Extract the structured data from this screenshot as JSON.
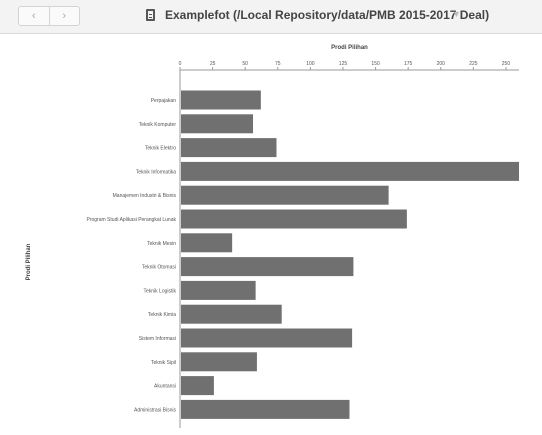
{
  "window": {
    "title": "Examplefot (/Local Repository/data/PMB 2015-2017 Deal)"
  },
  "toolbar": {
    "back_icon": "chevron-left-icon",
    "forward_icon": "chevron-right-icon",
    "document_icon": "document-icon",
    "title_dropdown_icon": "chevron-down-icon"
  },
  "colors": {
    "bar": "#707070",
    "toolbar_bg": "#f3f3f3",
    "axis": "#9a9a9a"
  },
  "chart_data": {
    "type": "bar",
    "orientation": "horizontal",
    "xlabel": "Prodi Pilihan",
    "ylabel": "Prodi Pilihan",
    "x_axis_position": "top",
    "xlim": [
      0,
      260
    ],
    "xticks": [
      0,
      25,
      50,
      75,
      100,
      125,
      150,
      175,
      200,
      225,
      250
    ],
    "grid": false,
    "categories": [
      "Perpajakan",
      "Teknik Komputer",
      "Teknik Elektro",
      "Teknik Informatika",
      "Manajemen Industri & Bisnis",
      "Program Studi Aplikasi Perangkat Lunak",
      "Teknik Mesin",
      "Teknik Otomasi",
      "Teknik Logistik",
      "Teknik Kimia",
      "Sistem Informasi",
      "Teknik Sipil",
      "Akuntansi",
      "Administrasi Bisnis"
    ],
    "values": [
      62,
      56,
      74,
      260,
      160,
      174,
      40,
      133,
      58,
      78,
      132,
      59,
      26,
      130
    ]
  }
}
